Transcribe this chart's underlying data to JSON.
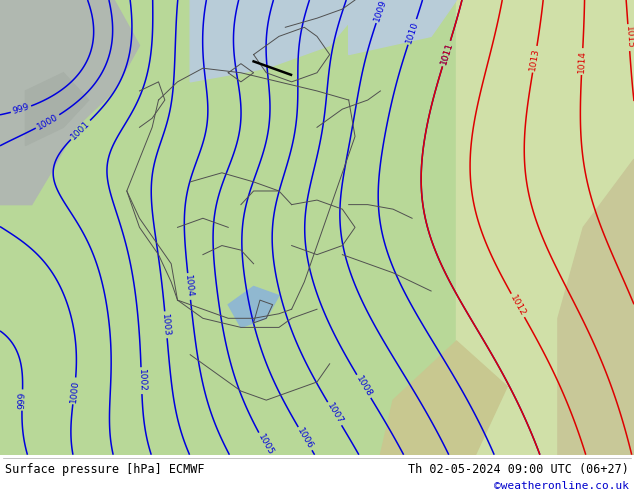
{
  "title_left": "Surface pressure [hPa] ECMWF",
  "title_right": "Th 02-05-2024 09:00 UTC (06+27)",
  "credit": "©weatheronline.co.uk",
  "bg_color": "#ffffff",
  "footer_text_color": "#000000",
  "credit_color": "#0000cc",
  "land_green": "#b8d898",
  "land_green2": "#c8e0a0",
  "land_gray": "#b8c0b0",
  "land_brown": "#c8b888",
  "sea_blue": "#a8c8e0",
  "isobar_blue": "#0000dd",
  "isobar_red": "#dd0000",
  "isobar_black": "#000000",
  "border_color": "#505050",
  "footer_fontsize": 8.5,
  "credit_fontsize": 8
}
